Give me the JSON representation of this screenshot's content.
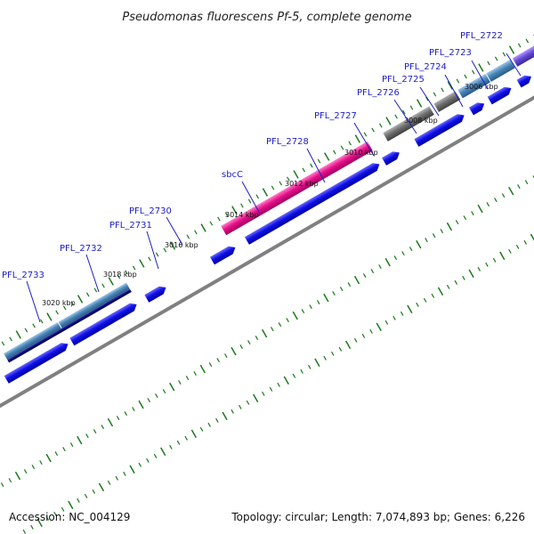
{
  "title": "Pseudomonas fluorescens Pf-5, complete genome",
  "footer": {
    "accession": "Accession: NC_004129",
    "topology": "Topology: circular; Length: 7,074,893 bp; Genes: 6,226"
  },
  "colors": {
    "cds": "#1010e8",
    "highlight": "#e8108a",
    "gray": "#6e6e6e",
    "steel": "#4a86b8",
    "navy": "#0a0a78",
    "violet": "#6a4ad8",
    "backbone": "#808080",
    "tick": "#1a7a1a",
    "label": "#1c1cc8"
  },
  "scale_labels": [
    "3006 kbp",
    "3008 kbp",
    "3010 kbp",
    "3012 kbp",
    "3014 kbp",
    "3016 kbp",
    "3018 kbp",
    "3020 kbp"
  ],
  "gene_labels": [
    "PFL_2722",
    "PFL_2723",
    "PFL_2724",
    "PFL_2725",
    "PFL_2726",
    "PFL_2727",
    "PFL_2728",
    "sbcC",
    "PFL_2730",
    "PFL_2731",
    "PFL_2732",
    "PFL_2733"
  ]
}
